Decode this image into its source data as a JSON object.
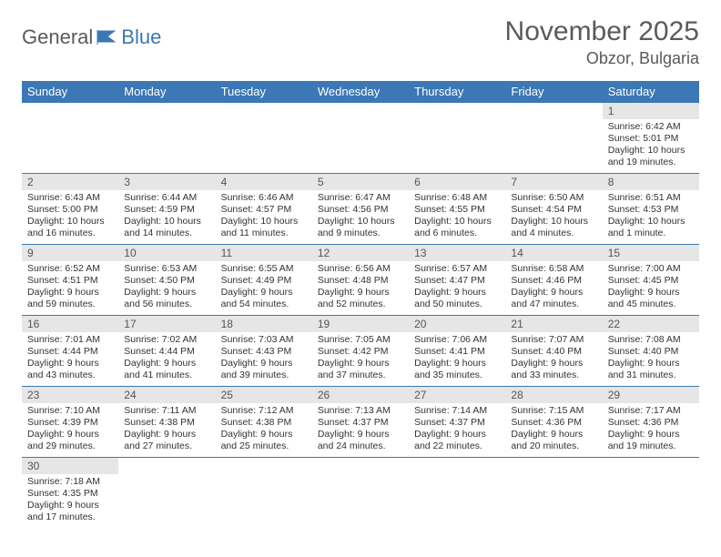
{
  "brand": {
    "part1": "General",
    "part2": "Blue"
  },
  "title": "November 2025",
  "location": "Obzor, Bulgaria",
  "colors": {
    "header_bg": "#3b78b5",
    "header_text": "#ffffff",
    "daynum_bg": "#e6e6e6",
    "border": "#3b78b5",
    "text": "#333333",
    "title_color": "#5a5a5a"
  },
  "weekdays": [
    "Sunday",
    "Monday",
    "Tuesday",
    "Wednesday",
    "Thursday",
    "Friday",
    "Saturday"
  ],
  "weeks": [
    [
      null,
      null,
      null,
      null,
      null,
      null,
      {
        "n": "1",
        "sr": "Sunrise: 6:42 AM",
        "ss": "Sunset: 5:01 PM",
        "dl": "Daylight: 10 hours and 19 minutes."
      }
    ],
    [
      {
        "n": "2",
        "sr": "Sunrise: 6:43 AM",
        "ss": "Sunset: 5:00 PM",
        "dl": "Daylight: 10 hours and 16 minutes."
      },
      {
        "n": "3",
        "sr": "Sunrise: 6:44 AM",
        "ss": "Sunset: 4:59 PM",
        "dl": "Daylight: 10 hours and 14 minutes."
      },
      {
        "n": "4",
        "sr": "Sunrise: 6:46 AM",
        "ss": "Sunset: 4:57 PM",
        "dl": "Daylight: 10 hours and 11 minutes."
      },
      {
        "n": "5",
        "sr": "Sunrise: 6:47 AM",
        "ss": "Sunset: 4:56 PM",
        "dl": "Daylight: 10 hours and 9 minutes."
      },
      {
        "n": "6",
        "sr": "Sunrise: 6:48 AM",
        "ss": "Sunset: 4:55 PM",
        "dl": "Daylight: 10 hours and 6 minutes."
      },
      {
        "n": "7",
        "sr": "Sunrise: 6:50 AM",
        "ss": "Sunset: 4:54 PM",
        "dl": "Daylight: 10 hours and 4 minutes."
      },
      {
        "n": "8",
        "sr": "Sunrise: 6:51 AM",
        "ss": "Sunset: 4:53 PM",
        "dl": "Daylight: 10 hours and 1 minute."
      }
    ],
    [
      {
        "n": "9",
        "sr": "Sunrise: 6:52 AM",
        "ss": "Sunset: 4:51 PM",
        "dl": "Daylight: 9 hours and 59 minutes."
      },
      {
        "n": "10",
        "sr": "Sunrise: 6:53 AM",
        "ss": "Sunset: 4:50 PM",
        "dl": "Daylight: 9 hours and 56 minutes."
      },
      {
        "n": "11",
        "sr": "Sunrise: 6:55 AM",
        "ss": "Sunset: 4:49 PM",
        "dl": "Daylight: 9 hours and 54 minutes."
      },
      {
        "n": "12",
        "sr": "Sunrise: 6:56 AM",
        "ss": "Sunset: 4:48 PM",
        "dl": "Daylight: 9 hours and 52 minutes."
      },
      {
        "n": "13",
        "sr": "Sunrise: 6:57 AM",
        "ss": "Sunset: 4:47 PM",
        "dl": "Daylight: 9 hours and 50 minutes."
      },
      {
        "n": "14",
        "sr": "Sunrise: 6:58 AM",
        "ss": "Sunset: 4:46 PM",
        "dl": "Daylight: 9 hours and 47 minutes."
      },
      {
        "n": "15",
        "sr": "Sunrise: 7:00 AM",
        "ss": "Sunset: 4:45 PM",
        "dl": "Daylight: 9 hours and 45 minutes."
      }
    ],
    [
      {
        "n": "16",
        "sr": "Sunrise: 7:01 AM",
        "ss": "Sunset: 4:44 PM",
        "dl": "Daylight: 9 hours and 43 minutes."
      },
      {
        "n": "17",
        "sr": "Sunrise: 7:02 AM",
        "ss": "Sunset: 4:44 PM",
        "dl": "Daylight: 9 hours and 41 minutes."
      },
      {
        "n": "18",
        "sr": "Sunrise: 7:03 AM",
        "ss": "Sunset: 4:43 PM",
        "dl": "Daylight: 9 hours and 39 minutes."
      },
      {
        "n": "19",
        "sr": "Sunrise: 7:05 AM",
        "ss": "Sunset: 4:42 PM",
        "dl": "Daylight: 9 hours and 37 minutes."
      },
      {
        "n": "20",
        "sr": "Sunrise: 7:06 AM",
        "ss": "Sunset: 4:41 PM",
        "dl": "Daylight: 9 hours and 35 minutes."
      },
      {
        "n": "21",
        "sr": "Sunrise: 7:07 AM",
        "ss": "Sunset: 4:40 PM",
        "dl": "Daylight: 9 hours and 33 minutes."
      },
      {
        "n": "22",
        "sr": "Sunrise: 7:08 AM",
        "ss": "Sunset: 4:40 PM",
        "dl": "Daylight: 9 hours and 31 minutes."
      }
    ],
    [
      {
        "n": "23",
        "sr": "Sunrise: 7:10 AM",
        "ss": "Sunset: 4:39 PM",
        "dl": "Daylight: 9 hours and 29 minutes."
      },
      {
        "n": "24",
        "sr": "Sunrise: 7:11 AM",
        "ss": "Sunset: 4:38 PM",
        "dl": "Daylight: 9 hours and 27 minutes."
      },
      {
        "n": "25",
        "sr": "Sunrise: 7:12 AM",
        "ss": "Sunset: 4:38 PM",
        "dl": "Daylight: 9 hours and 25 minutes."
      },
      {
        "n": "26",
        "sr": "Sunrise: 7:13 AM",
        "ss": "Sunset: 4:37 PM",
        "dl": "Daylight: 9 hours and 24 minutes."
      },
      {
        "n": "27",
        "sr": "Sunrise: 7:14 AM",
        "ss": "Sunset: 4:37 PM",
        "dl": "Daylight: 9 hours and 22 minutes."
      },
      {
        "n": "28",
        "sr": "Sunrise: 7:15 AM",
        "ss": "Sunset: 4:36 PM",
        "dl": "Daylight: 9 hours and 20 minutes."
      },
      {
        "n": "29",
        "sr": "Sunrise: 7:17 AM",
        "ss": "Sunset: 4:36 PM",
        "dl": "Daylight: 9 hours and 19 minutes."
      }
    ],
    [
      {
        "n": "30",
        "sr": "Sunrise: 7:18 AM",
        "ss": "Sunset: 4:35 PM",
        "dl": "Daylight: 9 hours and 17 minutes."
      },
      null,
      null,
      null,
      null,
      null,
      null
    ]
  ]
}
